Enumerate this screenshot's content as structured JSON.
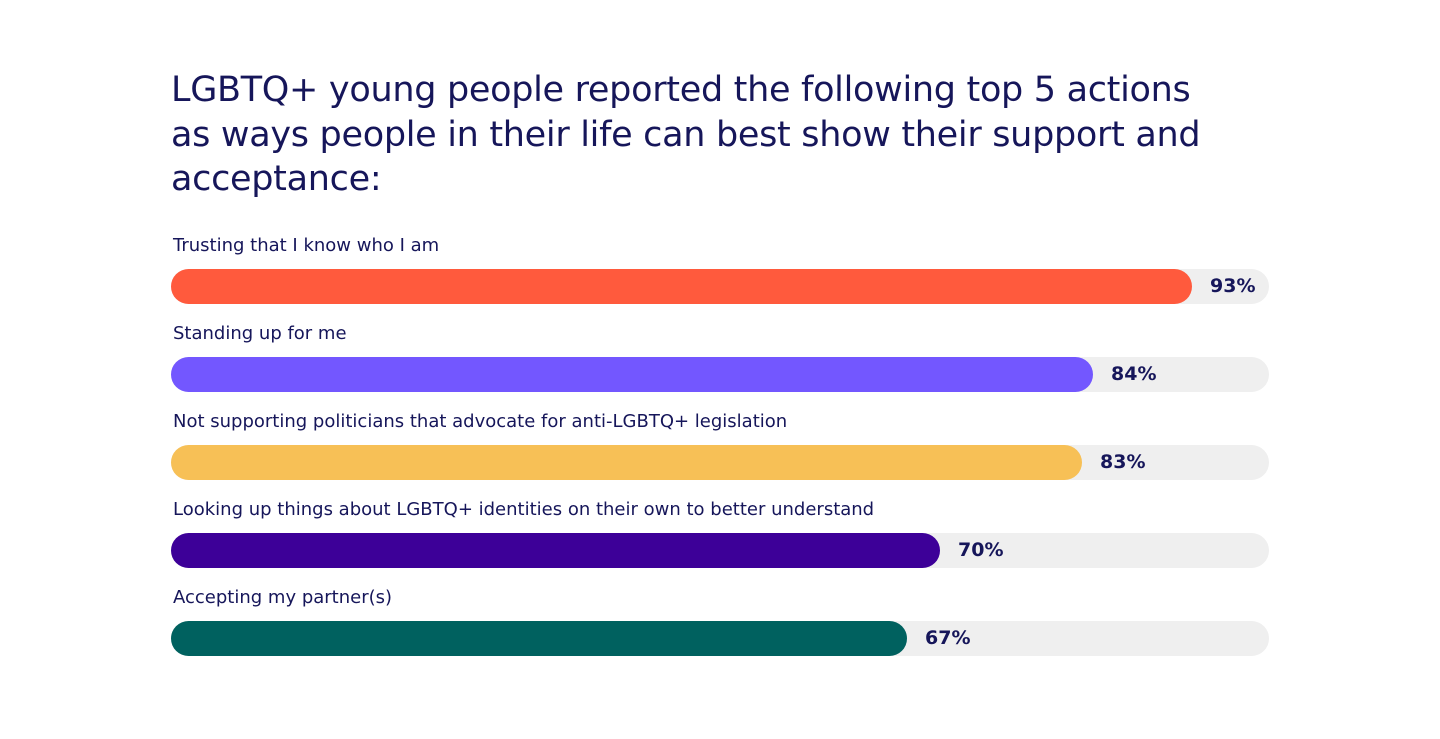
{
  "chart_data": {
    "type": "bar",
    "orientation": "horizontal",
    "title": "LGBTQ+ young people reported the following top 5 actions as ways people in their life can best show their support and acceptance:",
    "xlim": [
      0,
      100
    ],
    "grid": false,
    "legend": "none",
    "categories": [
      "Trusting that I know who I am",
      "Standing up for me",
      "Not supporting politicians that advocate for anti-LGBTQ+ legislation",
      "Looking up things about LGBTQ+ identities on their own to better understand",
      "Accepting my partner(s)"
    ],
    "values": [
      93,
      84,
      83,
      70,
      67
    ],
    "value_labels": [
      "93%",
      "84%",
      "83%",
      "70%",
      "67%"
    ],
    "colors": [
      "#ff5a3d",
      "#7357ff",
      "#f7c056",
      "#3d0098",
      "#00615f"
    ],
    "track_color": "#efefef"
  }
}
